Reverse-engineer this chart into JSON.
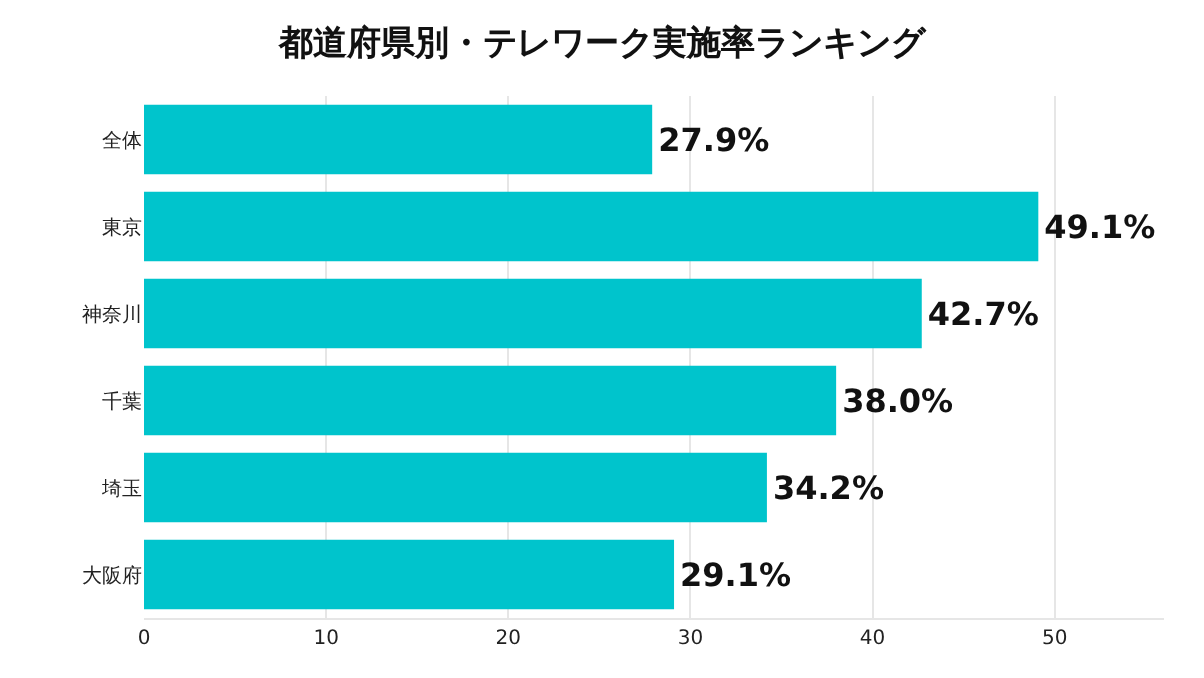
{
  "chart_data": {
    "type": "bar",
    "orientation": "horizontal",
    "title": "都道府県別・テレワーク実施率ランキング",
    "categories": [
      "全体",
      "東京",
      "神奈川",
      "千葉",
      "埼玉",
      "大阪府"
    ],
    "values": [
      27.9,
      49.1,
      42.7,
      38.0,
      34.2,
      29.1
    ],
    "value_labels": [
      "27.9%",
      "49.1%",
      "42.7%",
      "38.0%",
      "34.2%",
      "29.1%"
    ],
    "color": "#00c4cc",
    "xlim": [
      0,
      56
    ],
    "xticks": [
      0,
      10,
      20,
      30,
      40,
      50
    ],
    "grid": "x"
  }
}
